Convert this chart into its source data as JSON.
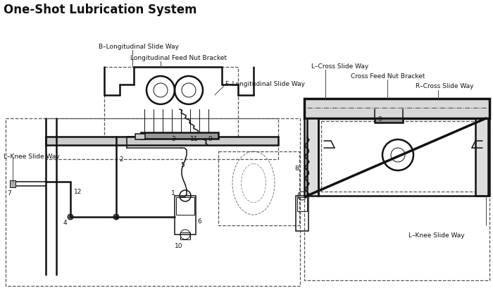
{
  "title": "One-Shot Lubrication System",
  "title_fontsize": 12,
  "title_fontweight": "bold",
  "bg_color": "#ffffff",
  "fg_color": "#111111",
  "label_B": "B–Longitudinal Slide Way",
  "label_long_feed": "Longitudinal Feed Nut Bracket",
  "label_F": "F–Longitudinal Slide Way",
  "label_L_knee_left": "L–Knee Slide Way",
  "label_L_cross": "L–Cross Slide Way",
  "label_cross_feed": "Cross Feed Nut Bracket",
  "label_R_cross": "R–Cross Slide Way",
  "label_L_knee_right": "L–Knee Slide Way",
  "lw_thin": 0.7,
  "lw_med": 1.1,
  "lw_thick": 1.8,
  "lw_xthick": 2.5
}
